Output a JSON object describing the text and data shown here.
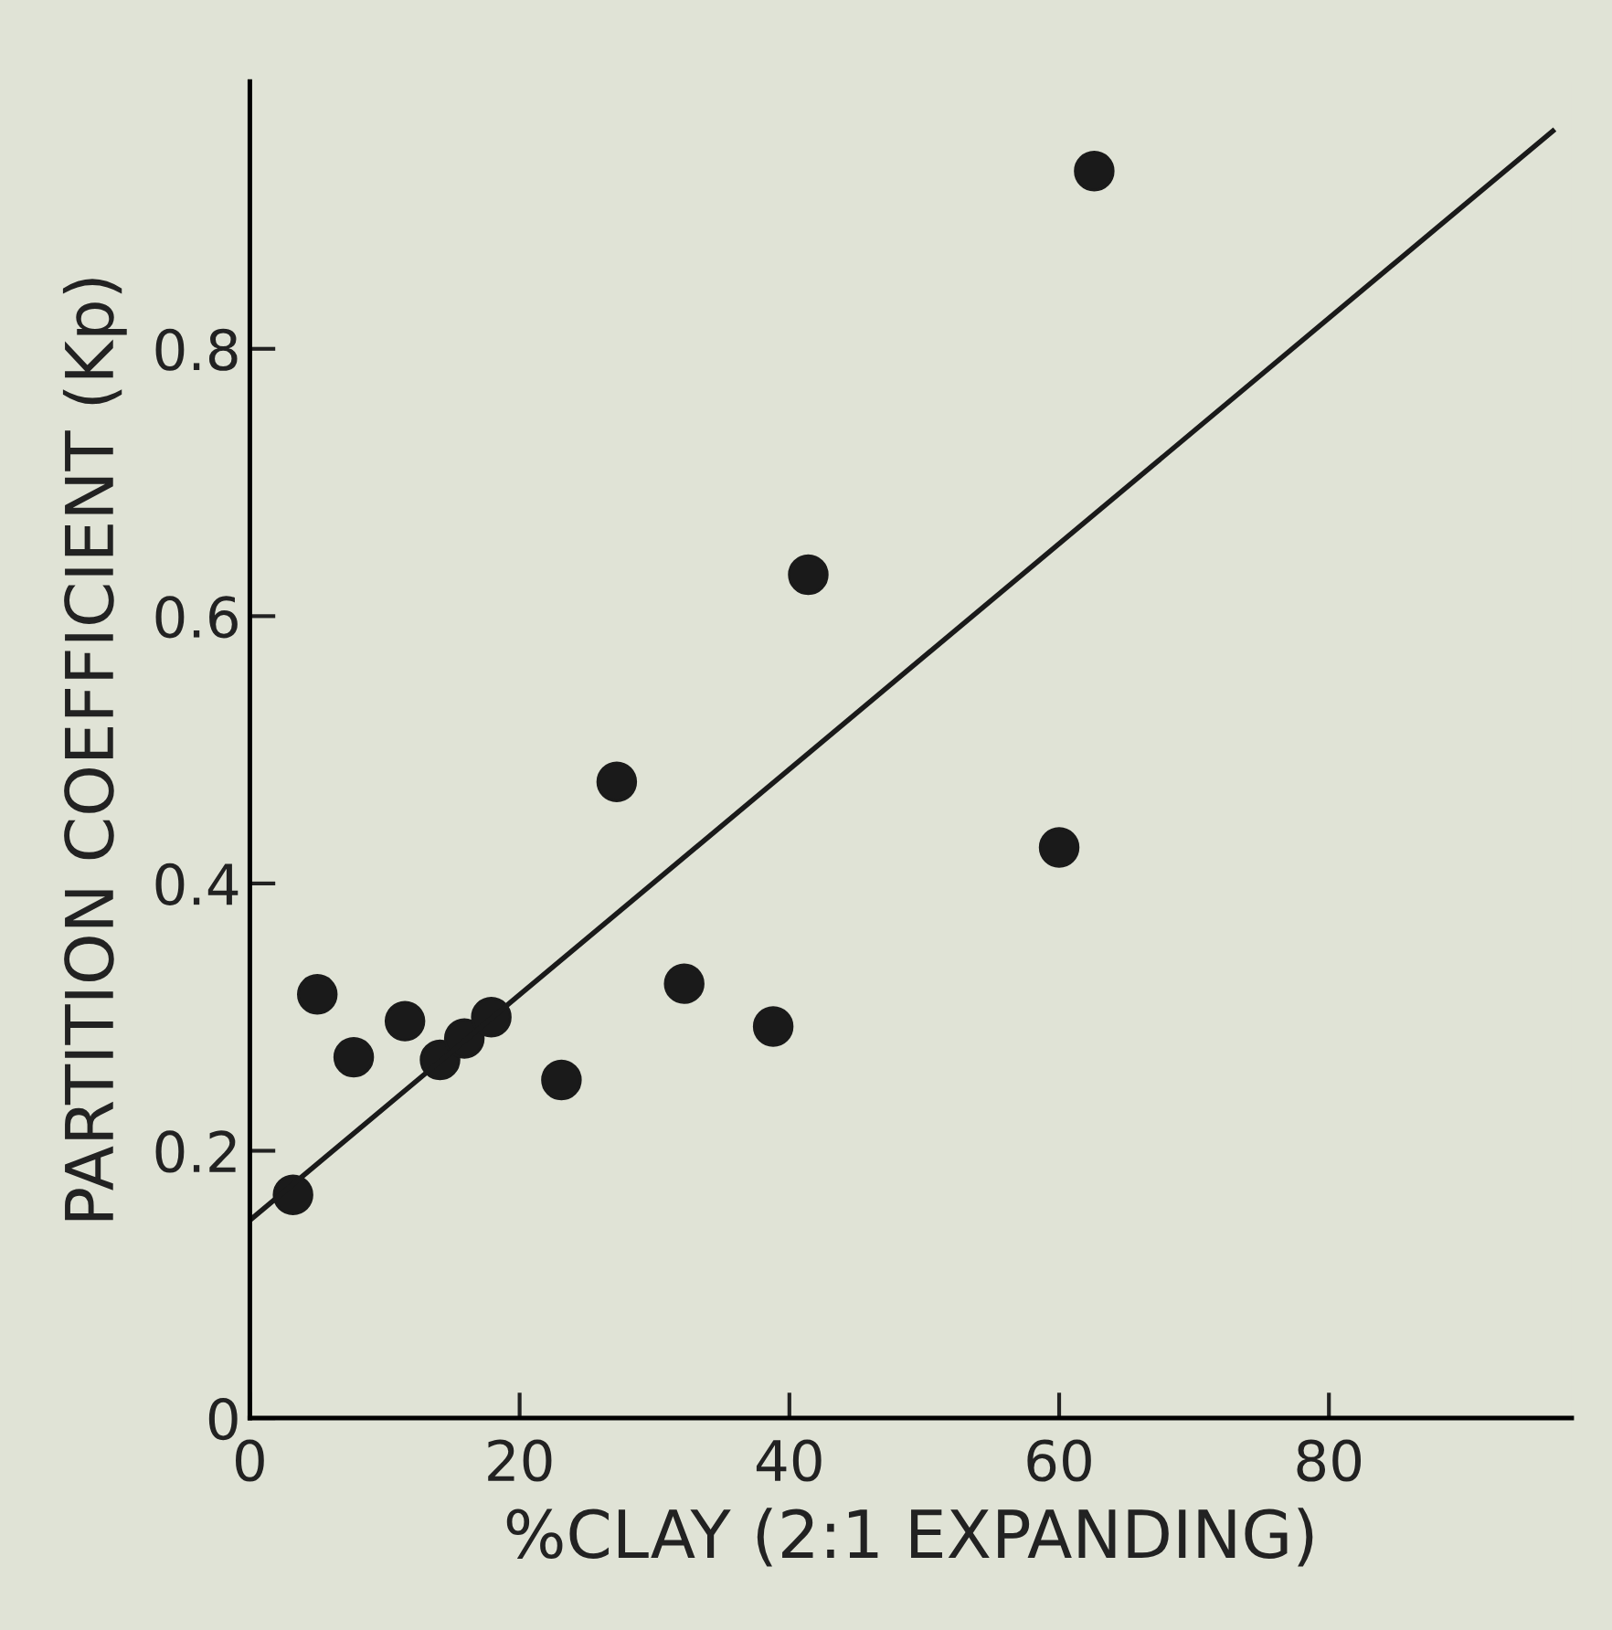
{
  "chart_data": {
    "type": "scatter",
    "xlabel": "%CLAY (2:1 EXPANDING)",
    "ylabel": "PARTITION COEFFICIENT (Kp)",
    "xlim": [
      0,
      98
    ],
    "ylim": [
      0,
      1.0
    ],
    "xticks": [
      0,
      20,
      40,
      60,
      80
    ],
    "yticks": [
      0,
      0.2,
      0.4,
      0.6,
      0.8
    ],
    "grid": false,
    "series": [
      {
        "marker": "circle",
        "color": "#1a1a1a",
        "x": [
          3.2,
          5.0,
          7.7,
          11.5,
          14.1,
          15.9,
          17.9,
          23.1,
          27.2,
          32.2,
          38.8,
          41.4,
          60.0,
          62.6
        ],
        "values": [
          0.167,
          0.317,
          0.27,
          0.297,
          0.268,
          0.284,
          0.3,
          0.253,
          0.476,
          0.325,
          0.293,
          0.631,
          0.427,
          0.933
        ]
      },
      {
        "type": "line",
        "marker": "none",
        "line_style": "solid",
        "color": "#1a1a1a",
        "x": [
          0,
          96.6
        ],
        "values": [
          0.148,
          0.963
        ]
      }
    ]
  }
}
